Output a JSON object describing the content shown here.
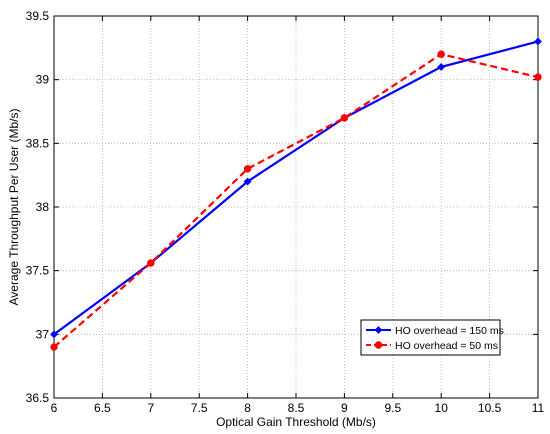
{
  "chart_data": {
    "type": "line",
    "title": "",
    "xlabel": "Optical Gain Threshold (Mb/s)",
    "ylabel": "Average Throughput Per User (Mb/s)",
    "xlim": [
      6,
      11
    ],
    "ylim": [
      36.5,
      39.5
    ],
    "xticks": [
      6,
      6.5,
      7,
      7.5,
      8,
      8.5,
      9,
      9.5,
      10,
      10.5,
      11
    ],
    "xtick_labels": [
      "6",
      "6.5",
      "7",
      "7.5",
      "8",
      "8.5",
      "9",
      "9.5",
      "10",
      "10.5",
      "11"
    ],
    "yticks": [
      36.5,
      37,
      37.5,
      38,
      38.5,
      39,
      39.5
    ],
    "ytick_labels": [
      "36.5",
      "37",
      "37.5",
      "38",
      "38.5",
      "39",
      "39.5"
    ],
    "grid": true,
    "legend_position": "lower-right",
    "x": [
      6,
      7,
      8,
      9,
      10,
      11
    ],
    "series": [
      {
        "name": "HO overhead = 150 ms",
        "values": [
          37.0,
          37.56,
          38.2,
          38.7,
          39.1,
          39.3
        ],
        "color": "#0000ff",
        "line_style": "solid",
        "marker": "diamond"
      },
      {
        "name": "HO overhead = 50 ms",
        "values": [
          36.9,
          37.56,
          38.3,
          38.7,
          39.2,
          39.02
        ],
        "color": "#ff0000",
        "line_style": "dashed",
        "marker": "circle"
      }
    ]
  }
}
